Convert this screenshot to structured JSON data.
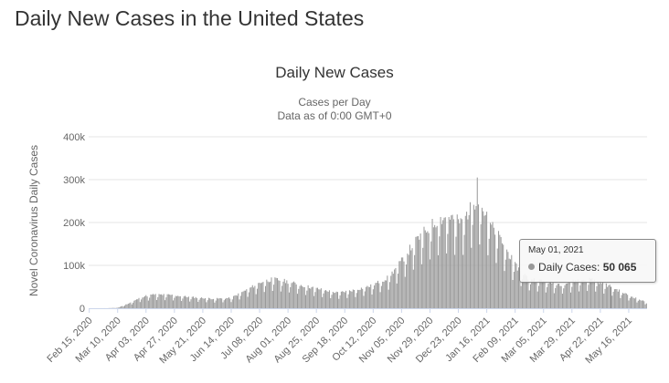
{
  "page": {
    "title": "Daily New Cases in the United States"
  },
  "chart_data": {
    "type": "bar",
    "title": "Daily New Cases",
    "subtitle_lines": [
      "Cases per Day",
      "Data as of 0:00 GMT+0"
    ],
    "ylabel": "Novel Coronavirus Daily Cases",
    "xlabel": "",
    "ylim": [
      0,
      400000
    ],
    "yticks": [
      0,
      100000,
      200000,
      300000,
      400000
    ],
    "ytick_labels": [
      "0",
      "100k",
      "200k",
      "300k",
      "400k"
    ],
    "grid": true,
    "bar_color": "#999999",
    "x_start": "2020-02-15",
    "x_end": "2021-05-31",
    "xtick_labels": [
      "Feb 15, 2020",
      "Mar 10, 2020",
      "Apr 03, 2020",
      "Apr 27, 2020",
      "May 21, 2020",
      "Jun 14, 2020",
      "Jul 08, 2020",
      "Aug 01, 2020",
      "Aug 25, 2020",
      "Sep 18, 2020",
      "Oct 12, 2020",
      "Nov 05, 2020",
      "Nov 29, 2020",
      "Dec 23, 2020",
      "Jan 16, 2021",
      "Feb 09, 2021",
      "Mar 05, 2021",
      "Mar 29, 2021",
      "Apr 22, 2021",
      "May 16, 2021"
    ],
    "trend_points": [
      {
        "date": "2020-02-15",
        "value": 0
      },
      {
        "date": "2020-03-01",
        "value": 100
      },
      {
        "date": "2020-03-10",
        "value": 1000
      },
      {
        "date": "2020-03-20",
        "value": 12000
      },
      {
        "date": "2020-04-01",
        "value": 28000
      },
      {
        "date": "2020-04-10",
        "value": 32000
      },
      {
        "date": "2020-04-24",
        "value": 31000
      },
      {
        "date": "2020-05-10",
        "value": 26000
      },
      {
        "date": "2020-05-31",
        "value": 22000
      },
      {
        "date": "2020-06-14",
        "value": 24000
      },
      {
        "date": "2020-06-25",
        "value": 40000
      },
      {
        "date": "2020-07-10",
        "value": 62000
      },
      {
        "date": "2020-07-20",
        "value": 68000
      },
      {
        "date": "2020-08-01",
        "value": 62000
      },
      {
        "date": "2020-08-15",
        "value": 52000
      },
      {
        "date": "2020-09-01",
        "value": 42000
      },
      {
        "date": "2020-09-12",
        "value": 36000
      },
      {
        "date": "2020-09-25",
        "value": 42000
      },
      {
        "date": "2020-10-10",
        "value": 52000
      },
      {
        "date": "2020-10-25",
        "value": 72000
      },
      {
        "date": "2020-11-05",
        "value": 110000
      },
      {
        "date": "2020-11-15",
        "value": 150000
      },
      {
        "date": "2020-11-25",
        "value": 180000
      },
      {
        "date": "2020-12-05",
        "value": 205000
      },
      {
        "date": "2020-12-15",
        "value": 215000
      },
      {
        "date": "2020-12-25",
        "value": 200000
      },
      {
        "date": "2021-01-02",
        "value": 230000
      },
      {
        "date": "2021-01-08",
        "value": 260000
      },
      {
        "date": "2021-01-18",
        "value": 200000
      },
      {
        "date": "2021-01-28",
        "value": 160000
      },
      {
        "date": "2021-02-09",
        "value": 100000
      },
      {
        "date": "2021-02-20",
        "value": 70000
      },
      {
        "date": "2021-03-05",
        "value": 62000
      },
      {
        "date": "2021-03-20",
        "value": 56000
      },
      {
        "date": "2021-04-05",
        "value": 66000
      },
      {
        "date": "2021-04-15",
        "value": 68000
      },
      {
        "date": "2021-05-01",
        "value": 50065
      },
      {
        "date": "2021-05-16",
        "value": 30000
      },
      {
        "date": "2021-05-31",
        "value": 14000
      }
    ],
    "peak": {
      "date": "2021-01-08",
      "value": 305000
    },
    "weekly_dip": 0.6,
    "highlight": {
      "date": "2021-05-01",
      "value": 50065
    }
  },
  "tooltip": {
    "date": "May 01, 2021",
    "label": "Daily Cases:",
    "value": "50 065"
  }
}
